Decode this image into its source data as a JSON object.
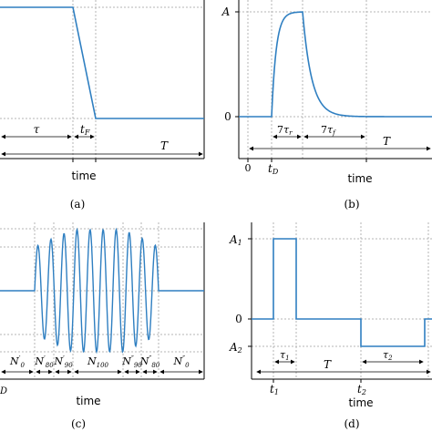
{
  "colors": {
    "signal": "#2f7fc1",
    "grid": "#b5b5b5",
    "axis": "#000000"
  },
  "panels": {
    "a": {
      "caption": "(a)",
      "xlabel": "time",
      "annotations": {
        "tau": "τ",
        "tf": "t",
        "tf_sub": "F",
        "T": "T"
      }
    },
    "b": {
      "caption": "(b)",
      "xlabel": "time",
      "yticks": {
        "A": "A",
        "zero": "0"
      },
      "xticks": {
        "zero": "0",
        "tD": "t",
        "tD_sub": "D"
      },
      "annotations": {
        "rise_num": "7",
        "rise": "τ",
        "rise_sub": "r",
        "fall_num": "7",
        "fall": "τ",
        "fall_sub": "f",
        "T": "T"
      }
    },
    "c": {
      "caption": "(c)",
      "xlabel": "time",
      "partial_tick": "D",
      "segments": [
        {
          "base": "N",
          "sup": "′",
          "sub": "0"
        },
        {
          "base": "N",
          "sup": "′",
          "sub": "80"
        },
        {
          "base": "N",
          "sup": "′",
          "sub": "90"
        },
        {
          "base": "N",
          "sup": "",
          "sub": "100"
        },
        {
          "base": "N",
          "sup": "″",
          "sub": "90"
        },
        {
          "base": "N",
          "sup": "″",
          "sub": "80"
        },
        {
          "base": "N",
          "sup": "″",
          "sub": "0"
        }
      ]
    },
    "d": {
      "caption": "(d)",
      "xlabel": "time",
      "yticks": {
        "A1": "A",
        "A1_sub": "1",
        "zero": "0",
        "A2": "A",
        "A2_sub": "2"
      },
      "xticks": {
        "t1": "t",
        "t1_sub": "1",
        "t2": "t",
        "t2_sub": "2"
      },
      "annotations": {
        "tau1": "τ",
        "tau1_sub": "1",
        "tau2": "τ",
        "tau2_sub": "2",
        "T": "T"
      }
    }
  }
}
